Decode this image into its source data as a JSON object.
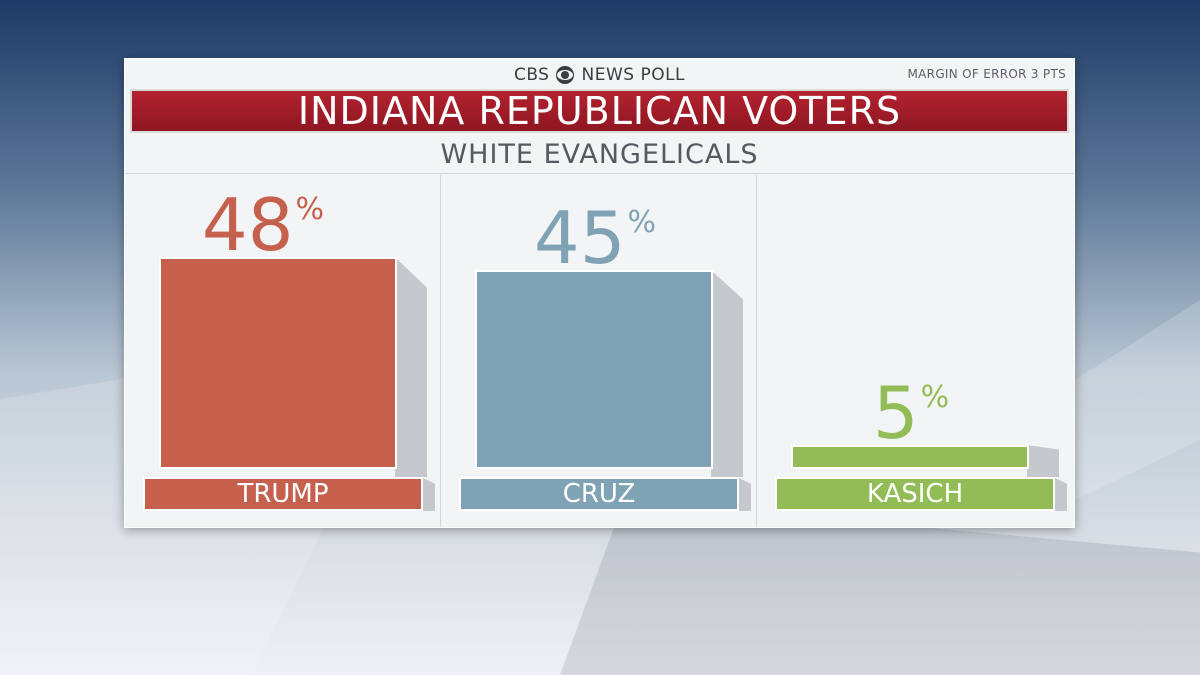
{
  "header": {
    "brand_left": "CBS",
    "brand_right": "NEWS POLL",
    "margin_of_error": "MARGIN OF ERROR 3 PTS",
    "title": "INDIANA REPUBLICAN VOTERS",
    "subtitle": "WHITE EVANGELICALS"
  },
  "colors": {
    "title_red": "#a81e2b",
    "trump": "#c4604c",
    "cruz": "#7fa3b5",
    "kasich": "#92bd56"
  },
  "chart_data": {
    "type": "bar",
    "title": "INDIANA REPUBLICAN VOTERS",
    "subtitle": "WHITE EVANGELICALS",
    "categories": [
      "TRUMP",
      "CRUZ",
      "KASICH"
    ],
    "values": [
      48,
      45,
      5
    ],
    "value_labels": [
      "48",
      "45",
      "5"
    ],
    "unit": "%",
    "ylim": [
      0,
      48
    ],
    "colors": [
      "#c4604c",
      "#7fa3b5",
      "#92bd56"
    ]
  }
}
